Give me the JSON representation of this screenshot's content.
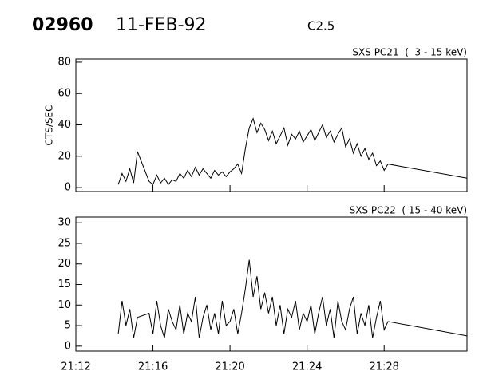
{
  "header": {
    "id": "02960",
    "date": "11-FEB-92",
    "class": "C2.5"
  },
  "chart_data": [
    {
      "type": "line",
      "title": "SXS PC21  (  3 - 15 keV)",
      "y_label": "CTS/SEC",
      "color": "#000000",
      "x": [
        1274.2,
        1274.4,
        1274.6,
        1274.8,
        1275.0,
        1275.2,
        1275.8,
        1276.0,
        1276.2,
        1276.4,
        1276.6,
        1276.8,
        1277.0,
        1277.2,
        1277.4,
        1277.6,
        1277.8,
        1278.0,
        1278.2,
        1278.4,
        1278.6,
        1278.8,
        1279.0,
        1279.2,
        1279.4,
        1279.6,
        1279.8,
        1280.0,
        1280.2,
        1280.4,
        1280.6,
        1280.8,
        1281.0,
        1281.2,
        1281.4,
        1281.6,
        1281.8,
        1282.0,
        1282.2,
        1282.4,
        1282.6,
        1282.8,
        1283.0,
        1283.2,
        1283.4,
        1283.6,
        1283.8,
        1284.0,
        1284.2,
        1284.4,
        1284.6,
        1284.8,
        1285.0,
        1285.2,
        1285.4,
        1285.6,
        1285.8,
        1286.0,
        1286.2,
        1286.4,
        1286.6,
        1286.8,
        1287.0,
        1287.2,
        1287.4,
        1287.6,
        1287.8,
        1288.0,
        1288.2,
        1292.3
      ],
      "values": [
        2,
        9,
        4,
        12,
        3,
        23,
        4,
        2,
        8,
        3,
        6,
        2,
        5,
        4,
        9,
        6,
        11,
        7,
        13,
        8,
        12,
        9,
        6,
        11,
        8,
        10,
        7,
        10,
        12,
        15,
        9,
        25,
        38,
        44,
        35,
        41,
        37,
        30,
        36,
        28,
        33,
        38,
        27,
        34,
        31,
        36,
        29,
        33,
        37,
        30,
        35,
        40,
        32,
        36,
        29,
        34,
        38,
        26,
        31,
        22,
        28,
        20,
        25,
        18,
        22,
        14,
        17,
        11,
        15,
        6
      ],
      "xlim": [
        1272,
        1292.3
      ],
      "xticks": [
        1272,
        1276,
        1280,
        1284,
        1288
      ],
      "ylim": [
        -2.5,
        82
      ],
      "yticks": [
        0,
        20,
        40,
        60,
        80
      ]
    },
    {
      "type": "line",
      "title": "SXS PC22  ( 15 - 40 keV)",
      "color": "#000000",
      "x": [
        1274.2,
        1274.4,
        1274.6,
        1274.8,
        1275.0,
        1275.2,
        1275.8,
        1276.0,
        1276.2,
        1276.4,
        1276.6,
        1276.8,
        1277.0,
        1277.2,
        1277.4,
        1277.6,
        1277.8,
        1278.0,
        1278.2,
        1278.4,
        1278.6,
        1278.8,
        1279.0,
        1279.2,
        1279.4,
        1279.6,
        1279.8,
        1280.0,
        1280.2,
        1280.4,
        1280.6,
        1280.8,
        1281.0,
        1281.2,
        1281.4,
        1281.6,
        1281.8,
        1282.0,
        1282.2,
        1282.4,
        1282.6,
        1282.8,
        1283.0,
        1283.2,
        1283.4,
        1283.6,
        1283.8,
        1284.0,
        1284.2,
        1284.4,
        1284.6,
        1284.8,
        1285.0,
        1285.2,
        1285.4,
        1285.6,
        1285.8,
        1286.0,
        1286.2,
        1286.4,
        1286.6,
        1286.8,
        1287.0,
        1287.2,
        1287.4,
        1287.6,
        1287.8,
        1288.0,
        1288.2,
        1292.3
      ],
      "values": [
        3,
        11,
        5,
        9,
        2,
        7,
        8,
        3,
        11,
        5,
        2,
        9,
        6,
        4,
        10,
        3,
        8,
        6,
        12,
        2,
        7,
        10,
        4,
        8,
        3,
        11,
        5,
        6,
        9,
        3,
        8,
        14,
        21,
        12,
        17,
        9,
        13,
        8,
        12,
        5,
        10,
        3,
        9,
        7,
        11,
        4,
        8,
        6,
        10,
        3,
        8,
        12,
        5,
        9,
        2,
        11,
        6,
        4,
        9,
        12,
        3,
        8,
        5,
        10,
        2,
        7,
        11,
        4,
        6,
        2.5
      ],
      "xlim": [
        1272,
        1292.3
      ],
      "xticks": [
        {
          "value": 1272,
          "label": "21:12"
        },
        {
          "value": 1276,
          "label": "21:16"
        },
        {
          "value": 1280,
          "label": "21:20"
        },
        {
          "value": 1284,
          "label": "21:24"
        },
        {
          "value": 1288,
          "label": "21:28"
        }
      ],
      "ylim": [
        -1.2,
        31.4
      ],
      "yticks": [
        0,
        5,
        10,
        15,
        20,
        25,
        30
      ]
    }
  ]
}
